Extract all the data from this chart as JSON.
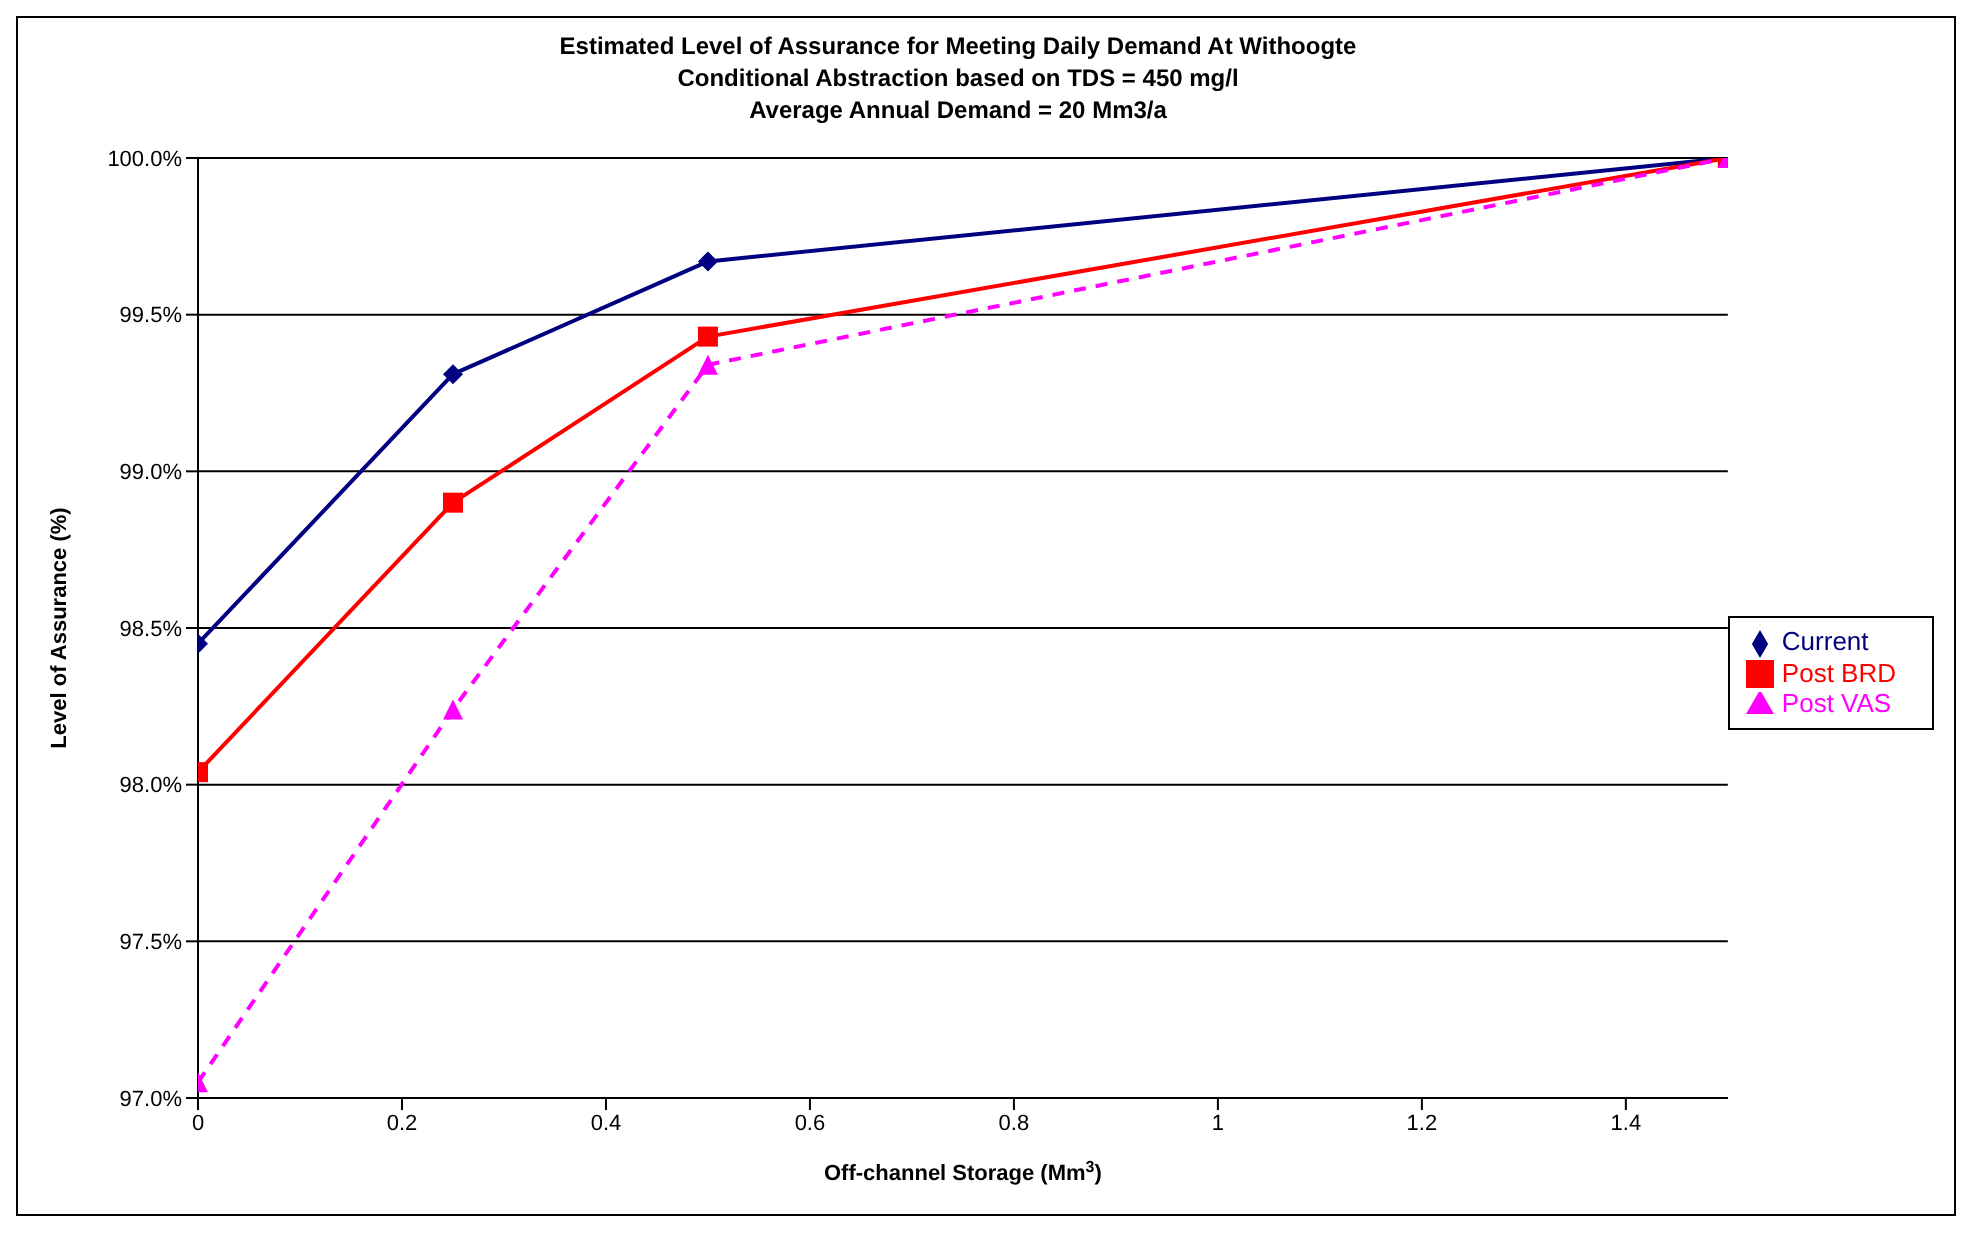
{
  "chart_data": {
    "type": "line",
    "title": "Estimated Level of Assurance for Meeting Daily Demand At Withoogte\nConditional Abstraction based on TDS = 450 mg/l\nAverage Annual Demand = 20 Mm3/a",
    "xlabel": "Off-channel Storage (Mm$^{3}$)",
    "ylabel": "Level of Assurance (%)",
    "x": [
      0,
      0.25,
      0.5,
      1.5
    ],
    "series": [
      {
        "name": "Current",
        "color": "#000080",
        "values": [
          98.45,
          99.31,
          99.67,
          100.0
        ],
        "marker": "diamond",
        "line_style": "solid"
      },
      {
        "name": "Post BRD",
        "color": "#ff0000",
        "values": [
          98.04,
          98.9,
          99.43,
          100.0
        ],
        "marker": "square",
        "line_style": "solid"
      },
      {
        "name": "Post VAS",
        "color": "#ff00ff",
        "values": [
          97.05,
          98.24,
          99.34,
          100.0
        ],
        "marker": "triangle",
        "line_style": "dashed"
      }
    ],
    "xlim": [
      0,
      1.5
    ],
    "xticks": [
      0,
      0.2,
      0.4,
      0.6,
      0.8,
      1,
      1.2,
      1.4
    ],
    "ylim": [
      97,
      100
    ],
    "yticks": [
      {
        "value": 97,
        "label": "97.0%"
      },
      {
        "value": 97.5,
        "label": "97.5%"
      },
      {
        "value": 98,
        "label": "98.0%"
      },
      {
        "value": 98.5,
        "label": "98.5%"
      },
      {
        "value": 99,
        "label": "99.0%"
      },
      {
        "value": 99.5,
        "label": "99.5%"
      },
      {
        "value": 100,
        "label": "100.0%"
      }
    ],
    "grid": "y",
    "legend": "right"
  }
}
